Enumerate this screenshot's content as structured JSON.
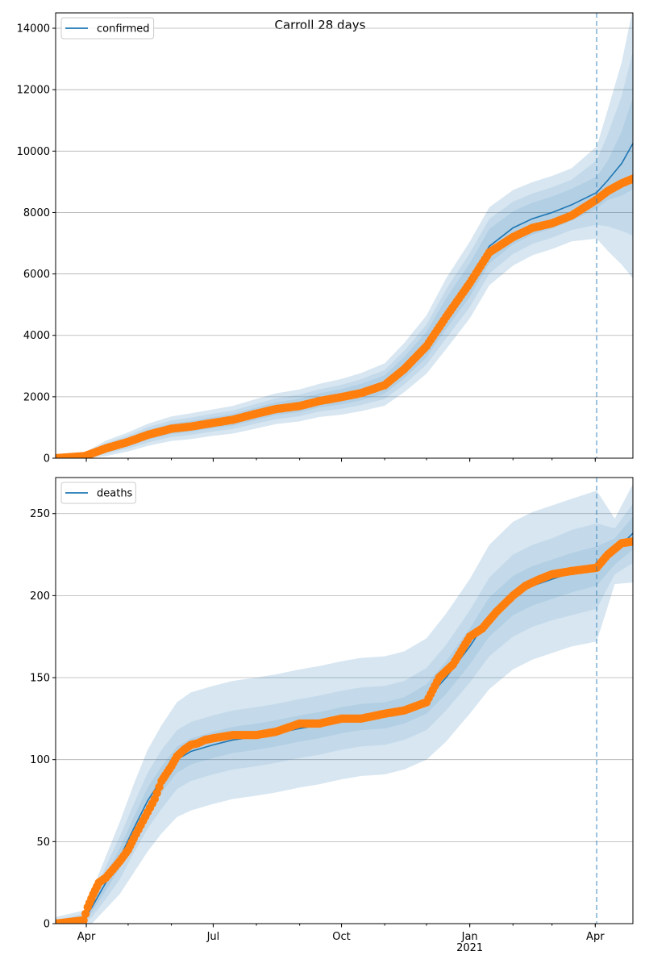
{
  "figure": {
    "title": "Carroll 28 days",
    "colors": {
      "model_line": "#1f77b4",
      "observed": "#ff7f0e",
      "band": "#1f77b4",
      "grid": "#b0b0b0",
      "forecast_line": "#1f77b4"
    }
  },
  "chart_data": [
    {
      "type": "line",
      "legend": [
        "confirmed"
      ],
      "legend_position": "upper-left",
      "grid": "y",
      "xlim": [
        "2020-03-10",
        "2021-04-28"
      ],
      "ylim": [
        0,
        14500
      ],
      "yticks": [
        0,
        2000,
        4000,
        6000,
        8000,
        10000,
        12000,
        14000
      ],
      "xticks": [
        "2020-04-01",
        "2020-07-01",
        "2020-10-01",
        "2021-01-01",
        "2021-04-01"
      ],
      "xtick_labels": [
        "Apr",
        "Jul",
        "Oct",
        "Jan\n2021",
        "Apr"
      ],
      "forecast_start": "2021-04-02",
      "series": [
        {
          "name": "confirmed",
          "style": "line",
          "x": [
            "2020-03-10",
            "2020-03-31",
            "2020-04-15",
            "2020-05-01",
            "2020-05-15",
            "2020-06-01",
            "2020-06-15",
            "2020-07-01",
            "2020-07-15",
            "2020-08-01",
            "2020-08-15",
            "2020-09-01",
            "2020-09-15",
            "2020-10-01",
            "2020-10-15",
            "2020-11-01",
            "2020-11-15",
            "2020-12-01",
            "2020-12-15",
            "2021-01-01",
            "2021-01-15",
            "2021-02-01",
            "2021-02-15",
            "2021-03-01",
            "2021-03-15",
            "2021-04-02",
            "2021-04-10",
            "2021-04-20",
            "2021-04-28"
          ],
          "values": [
            0,
            70,
            320,
            530,
            760,
            960,
            1040,
            1160,
            1250,
            1450,
            1610,
            1720,
            1880,
            2000,
            2150,
            2400,
            2950,
            3700,
            4700,
            5800,
            6900,
            7500,
            7800,
            8000,
            8250,
            8650,
            9050,
            9600,
            10250
          ],
          "band_half_widths": [
            [
              0,
              40,
              100,
              130,
              160,
              170,
              175,
              180,
              190,
              200,
              210,
              220,
              230,
              250,
              270,
              300,
              350,
              420,
              500,
              550,
              560,
              540,
              520,
              520,
              520,
              520,
              640,
              1050,
              1500
            ],
            [
              0,
              80,
              170,
              210,
              250,
              270,
              280,
              290,
              300,
              320,
              340,
              350,
              360,
              390,
              420,
              470,
              550,
              650,
              800,
              880,
              890,
              850,
              820,
              820,
              820,
              1050,
              1500,
              2200,
              3000
            ],
            [
              0,
              120,
              250,
              310,
              360,
              400,
              420,
              430,
              450,
              480,
              500,
              520,
              540,
              580,
              620,
              690,
              800,
              950,
              1150,
              1250,
              1270,
              1230,
              1190,
              1190,
              1190,
              1500,
              2300,
              3300,
              4400
            ]
          ]
        },
        {
          "name": "observed",
          "style": "markers",
          "x": [
            "2020-03-10",
            "2020-03-31",
            "2020-04-15",
            "2020-05-01",
            "2020-05-15",
            "2020-06-01",
            "2020-06-15",
            "2020-07-01",
            "2020-07-15",
            "2020-08-01",
            "2020-08-15",
            "2020-09-01",
            "2020-09-15",
            "2020-10-01",
            "2020-10-15",
            "2020-11-01",
            "2020-11-15",
            "2020-12-01",
            "2020-12-15",
            "2021-01-01",
            "2021-01-15",
            "2021-02-01",
            "2021-02-15",
            "2021-03-01",
            "2021-03-15",
            "2021-04-02",
            "2021-04-10",
            "2021-04-20",
            "2021-04-28"
          ],
          "values": [
            0,
            70,
            320,
            530,
            760,
            960,
            1030,
            1150,
            1250,
            1450,
            1600,
            1700,
            1860,
            1990,
            2120,
            2380,
            2900,
            3650,
            4600,
            5700,
            6700,
            7200,
            7500,
            7650,
            7900,
            8420,
            8700,
            8950,
            9100
          ]
        }
      ]
    },
    {
      "type": "line",
      "legend": [
        "deaths"
      ],
      "legend_position": "upper-left",
      "grid": "y",
      "xlim": [
        "2020-03-10",
        "2021-04-28"
      ],
      "ylim": [
        0,
        272
      ],
      "yticks": [
        0,
        50,
        100,
        150,
        200,
        250
      ],
      "xticks": [
        "2020-04-01",
        "2020-07-01",
        "2020-10-01",
        "2021-01-01",
        "2021-04-01"
      ],
      "xtick_labels": [
        "Apr",
        "Jul",
        "Oct",
        "Jan\n2021",
        "Apr"
      ],
      "forecast_start": "2021-04-02",
      "series": [
        {
          "name": "deaths",
          "style": "line",
          "x": [
            "2020-03-10",
            "2020-03-30",
            "2020-04-05",
            "2020-04-15",
            "2020-04-25",
            "2020-05-05",
            "2020-05-15",
            "2020-05-25",
            "2020-06-05",
            "2020-06-15",
            "2020-07-01",
            "2020-07-15",
            "2020-08-01",
            "2020-08-15",
            "2020-09-01",
            "2020-09-15",
            "2020-10-01",
            "2020-10-15",
            "2020-11-01",
            "2020-11-15",
            "2020-12-01",
            "2020-12-15",
            "2021-01-01",
            "2021-01-15",
            "2021-02-01",
            "2021-02-15",
            "2021-03-01",
            "2021-03-15",
            "2021-04-02",
            "2021-04-15",
            "2021-04-28"
          ],
          "values": [
            0,
            2,
            10,
            25,
            40,
            58,
            75,
            88,
            100,
            105,
            109,
            112,
            114,
            116,
            119,
            121,
            124,
            126,
            127,
            130,
            137,
            150,
            169,
            187,
            200,
            206,
            210,
            214,
            218,
            227,
            238
          ],
          "band_half_widths": [
            [
              1,
              2,
              3,
              5,
              6,
              7,
              8,
              8,
              8,
              8,
              8,
              8,
              8,
              8,
              8,
              8,
              8,
              8,
              8,
              8,
              9,
              10,
              11,
              12,
              12,
              12,
              12,
              12,
              12,
              8,
              10
            ],
            [
              2,
              4,
              6,
              10,
              13,
              15,
              17,
              18,
              18,
              18,
              18,
              18,
              18,
              18,
              18,
              18,
              18,
              18,
              18,
              18,
              19,
              20,
              22,
              24,
              25,
              25,
              25,
              26,
              26,
              14,
              18
            ],
            [
              4,
              6,
              10,
              16,
              22,
              27,
              31,
              33,
              35,
              36,
              36,
              36,
              36,
              36,
              36,
              36,
              36,
              36,
              36,
              36,
              37,
              39,
              41,
              44,
              45,
              45,
              45,
              45,
              46,
              20,
              30
            ]
          ]
        },
        {
          "name": "observed",
          "style": "markers",
          "x": [
            "2020-03-10",
            "2020-03-30",
            "2020-04-02",
            "2020-04-06",
            "2020-04-10",
            "2020-04-15",
            "2020-04-20",
            "2020-04-25",
            "2020-05-01",
            "2020-05-05",
            "2020-05-10",
            "2020-05-15",
            "2020-05-20",
            "2020-05-25",
            "2020-06-01",
            "2020-06-05",
            "2020-06-10",
            "2020-06-15",
            "2020-06-20",
            "2020-06-25",
            "2020-07-01",
            "2020-07-15",
            "2020-08-01",
            "2020-08-15",
            "2020-09-01",
            "2020-09-15",
            "2020-10-01",
            "2020-10-15",
            "2020-11-01",
            "2020-11-15",
            "2020-12-01",
            "2020-12-10",
            "2020-12-20",
            "2021-01-01",
            "2021-01-10",
            "2021-01-20",
            "2021-02-01",
            "2021-02-10",
            "2021-02-20",
            "2021-03-01",
            "2021-03-15",
            "2021-04-02",
            "2021-04-10",
            "2021-04-20",
            "2021-04-28"
          ],
          "values": [
            0,
            2,
            10,
            18,
            25,
            28,
            33,
            38,
            45,
            52,
            60,
            68,
            76,
            87,
            96,
            102,
            106,
            109,
            110,
            112,
            113,
            115,
            115,
            117,
            122,
            122,
            125,
            125,
            128,
            130,
            135,
            150,
            158,
            175,
            180,
            190,
            200,
            206,
            210,
            213,
            215,
            217,
            225,
            232,
            233
          ]
        }
      ]
    }
  ]
}
